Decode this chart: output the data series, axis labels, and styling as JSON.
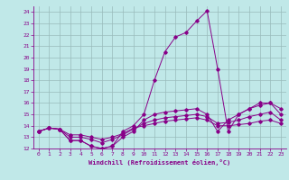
{
  "xlabel": "Windchill (Refroidissement éolien,°C)",
  "xlim": [
    -0.5,
    23.5
  ],
  "ylim": [
    12,
    24.5
  ],
  "yticks": [
    12,
    13,
    14,
    15,
    16,
    17,
    18,
    19,
    20,
    21,
    22,
    23,
    24
  ],
  "xticks": [
    0,
    1,
    2,
    3,
    4,
    5,
    6,
    7,
    8,
    9,
    10,
    11,
    12,
    13,
    14,
    15,
    16,
    17,
    18,
    19,
    20,
    21,
    22,
    23
  ],
  "bg_color": "#c0e8e8",
  "line_color": "#880088",
  "grid_color": "#99bbbb",
  "series": [
    {
      "x": [
        0,
        1,
        2,
        3,
        4,
        5,
        6,
        7,
        8,
        9,
        10,
        11,
        12,
        13,
        14,
        15,
        16,
        17,
        18,
        19,
        20,
        21,
        22,
        23
      ],
      "y": [
        13.5,
        13.8,
        13.7,
        12.7,
        12.7,
        12.2,
        12.0,
        12.2,
        13.5,
        14.0,
        15.0,
        18.0,
        20.5,
        21.8,
        22.2,
        23.2,
        24.1,
        19.0,
        13.5,
        15.0,
        15.5,
        16.0,
        16.0,
        15.0
      ]
    },
    {
      "x": [
        0,
        1,
        2,
        3,
        4,
        5,
        6,
        7,
        8,
        9,
        10,
        11,
        12,
        13,
        14,
        15,
        16,
        17,
        18,
        19,
        20,
        21,
        22,
        23
      ],
      "y": [
        13.5,
        13.8,
        13.7,
        12.7,
        12.7,
        12.2,
        12.0,
        12.2,
        13.0,
        13.5,
        14.5,
        15.0,
        15.2,
        15.3,
        15.4,
        15.5,
        15.0,
        13.5,
        14.5,
        15.0,
        15.5,
        15.8,
        16.0,
        15.5
      ]
    },
    {
      "x": [
        0,
        1,
        2,
        3,
        4,
        5,
        6,
        7,
        8,
        9,
        10,
        11,
        12,
        13,
        14,
        15,
        16,
        17,
        18,
        19,
        20,
        21,
        22,
        23
      ],
      "y": [
        13.5,
        13.8,
        13.7,
        13.0,
        13.0,
        12.8,
        12.5,
        12.8,
        13.2,
        13.7,
        14.2,
        14.5,
        14.7,
        14.8,
        14.9,
        15.0,
        14.8,
        14.2,
        14.3,
        14.5,
        14.8,
        15.0,
        15.2,
        14.5
      ]
    },
    {
      "x": [
        0,
        1,
        2,
        3,
        4,
        5,
        6,
        7,
        8,
        9,
        10,
        11,
        12,
        13,
        14,
        15,
        16,
        17,
        18,
        19,
        20,
        21,
        22,
        23
      ],
      "y": [
        13.5,
        13.8,
        13.7,
        13.2,
        13.2,
        13.0,
        12.8,
        13.0,
        13.3,
        13.8,
        14.0,
        14.2,
        14.4,
        14.5,
        14.6,
        14.7,
        14.5,
        14.0,
        14.0,
        14.1,
        14.2,
        14.4,
        14.5,
        14.2
      ]
    }
  ]
}
